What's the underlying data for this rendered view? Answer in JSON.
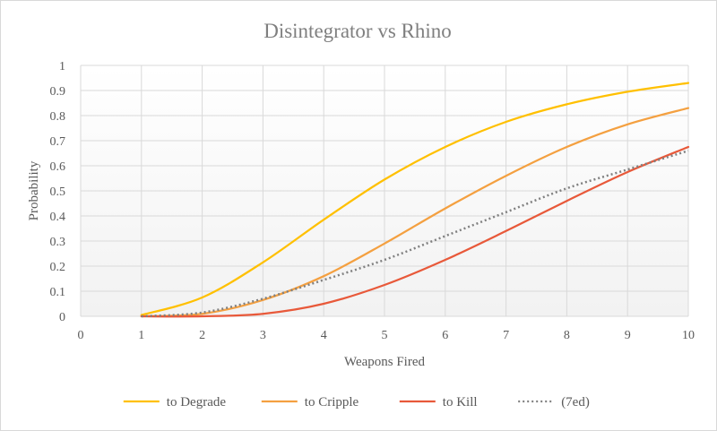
{
  "chart_data": {
    "type": "line",
    "title": "Disintegrator  vs Rhino",
    "xlabel": "Weapons Fired",
    "ylabel": "Probability",
    "xlim": [
      0,
      10
    ],
    "ylim": [
      0,
      1
    ],
    "x_ticks": [
      "0",
      "1",
      "2",
      "3",
      "4",
      "5",
      "6",
      "7",
      "8",
      "9",
      "10"
    ],
    "y_ticks": [
      "0",
      "0.1",
      "0.2",
      "0.3",
      "0.4",
      "0.5",
      "0.6",
      "0.7",
      "0.8",
      "0.9",
      "1"
    ],
    "grid": true,
    "legend_position": "bottom",
    "x": [
      1,
      2,
      3,
      4,
      5,
      6,
      7,
      8,
      9,
      10
    ],
    "series": [
      {
        "name": "to Degrade",
        "color": "#ffc000",
        "style": "solid",
        "values": [
          0.005,
          0.075,
          0.215,
          0.385,
          0.545,
          0.675,
          0.775,
          0.845,
          0.895,
          0.93
        ]
      },
      {
        "name": "to Cripple",
        "color": "#f4a040",
        "style": "solid",
        "values": [
          0.0,
          0.01,
          0.065,
          0.16,
          0.29,
          0.43,
          0.56,
          0.675,
          0.765,
          0.83
        ]
      },
      {
        "name": "to Kill",
        "color": "#e8593a",
        "style": "solid",
        "values": [
          0.0,
          0.0,
          0.01,
          0.05,
          0.125,
          0.225,
          0.34,
          0.46,
          0.575,
          0.675
        ]
      },
      {
        "name": "(7ed)",
        "color": "#808080",
        "style": "dotted",
        "values": [
          0.0,
          0.015,
          0.07,
          0.145,
          0.225,
          0.32,
          0.415,
          0.51,
          0.585,
          0.66
        ]
      }
    ]
  }
}
